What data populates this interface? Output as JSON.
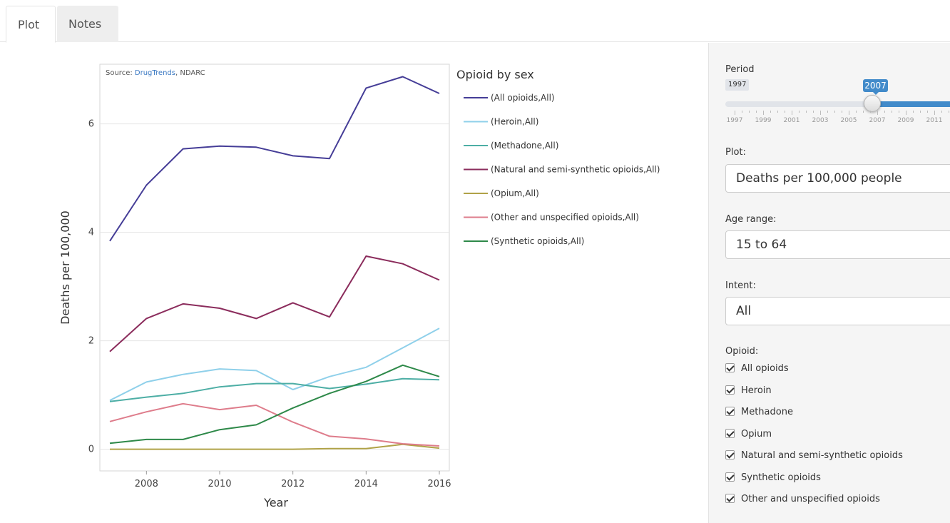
{
  "tabs": [
    {
      "label": "Plot",
      "active": true
    },
    {
      "label": "Notes",
      "active": false
    }
  ],
  "source": {
    "prefix": "Source: ",
    "link": "DrugTrends",
    "suffix": ", NDARC"
  },
  "controls": {
    "period": {
      "label": "Period",
      "min_label": "1997",
      "value_label": "2007",
      "tick_labels": [
        "1997",
        "1999",
        "2001",
        "2003",
        "2005",
        "2007",
        "2009",
        "2011"
      ]
    },
    "plot": {
      "label": "Plot:",
      "selected": "Deaths per 100,000 people"
    },
    "age_range": {
      "label": "Age range:",
      "selected": "15 to 64"
    },
    "intent": {
      "label": "Intent:",
      "selected": "All"
    },
    "opioid": {
      "label": "Opioid:",
      "options": [
        {
          "label": "All opioids",
          "checked": true
        },
        {
          "label": "Heroin",
          "checked": true
        },
        {
          "label": "Methadone",
          "checked": true
        },
        {
          "label": "Opium",
          "checked": true
        },
        {
          "label": "Natural and semi-synthetic opioids",
          "checked": true
        },
        {
          "label": "Synthetic opioids",
          "checked": true
        },
        {
          "label": "Other and unspecified opioids",
          "checked": true
        }
      ]
    }
  },
  "chart_data": {
    "type": "line",
    "xlabel": "Year",
    "ylabel": "Deaths per 100,000",
    "legend_title": "Opioid by sex",
    "legend_position": "right",
    "grid": true,
    "xlim": [
      2007,
      2016
    ],
    "ylim": [
      -0.4,
      7.1
    ],
    "x_ticks": [
      2008,
      2010,
      2012,
      2014,
      2016
    ],
    "y_ticks": [
      0,
      2,
      4,
      6
    ],
    "x": [
      2007,
      2008,
      2009,
      2010,
      2011,
      2012,
      2013,
      2014,
      2015,
      2016
    ],
    "series": [
      {
        "name": "(All opioids,All)",
        "color": "#453d97",
        "values": [
          3.84,
          4.87,
          5.54,
          5.59,
          5.57,
          5.41,
          5.36,
          6.66,
          6.87,
          6.56
        ]
      },
      {
        "name": "(Heroin,All)",
        "color": "#8fd0ea",
        "values": [
          0.9,
          1.24,
          1.38,
          1.48,
          1.45,
          1.1,
          1.34,
          1.51,
          1.87,
          2.23
        ]
      },
      {
        "name": "(Methadone,All)",
        "color": "#4daea5",
        "values": [
          0.88,
          0.96,
          1.03,
          1.15,
          1.21,
          1.21,
          1.12,
          1.2,
          1.3,
          1.28
        ]
      },
      {
        "name": "(Natural and semi-synthetic opioids,All)",
        "color": "#8b2c5c",
        "values": [
          1.8,
          2.41,
          2.68,
          2.6,
          2.41,
          2.7,
          2.44,
          3.56,
          3.42,
          3.12
        ]
      },
      {
        "name": "(Opium,All)",
        "color": "#b0a247",
        "values": [
          0.0,
          0.0,
          0.0,
          0.0,
          0.0,
          0.0,
          0.01,
          0.01,
          0.09,
          0.02
        ]
      },
      {
        "name": "(Other and unspecified opioids,All)",
        "color": "#de7c8b",
        "values": [
          0.51,
          0.69,
          0.84,
          0.73,
          0.81,
          0.5,
          0.24,
          0.19,
          0.1,
          0.06
        ]
      },
      {
        "name": "(Synthetic opioids,All)",
        "color": "#2e8949",
        "values": [
          0.11,
          0.18,
          0.18,
          0.36,
          0.45,
          0.76,
          1.03,
          1.25,
          1.55,
          1.34
        ]
      }
    ]
  }
}
